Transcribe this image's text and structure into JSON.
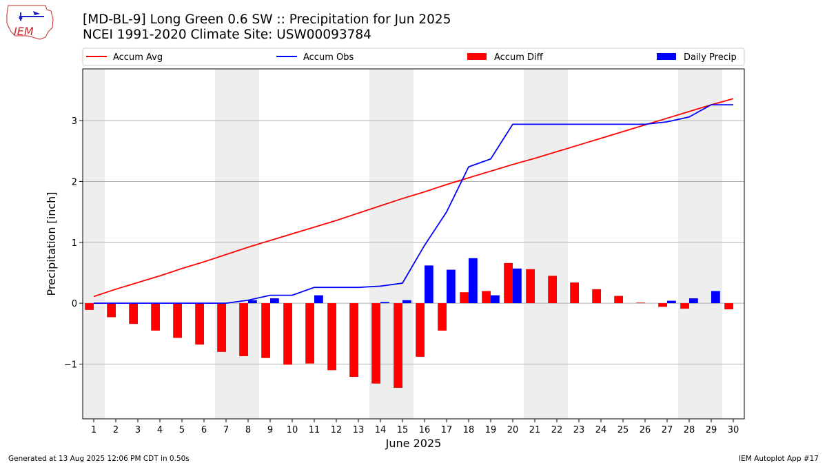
{
  "header": {
    "title_line1": "[MD-BL-9] Long Green 0.6 SW :: Precipitation for Jun 2025",
    "title_line2": "NCEI 1991-2020 Climate Site: USW00093784",
    "logo_text": "IEM"
  },
  "footer": {
    "generated": "Generated at 13 Aug 2025 12:06 PM CDT in 0.50s",
    "app": "IEM Autoplot App #17"
  },
  "chart_data": {
    "type": "bar",
    "xlabel": "June 2025",
    "ylabel": "Precipitation [inch]",
    "x": [
      1,
      2,
      3,
      4,
      5,
      6,
      7,
      8,
      9,
      10,
      11,
      12,
      13,
      14,
      15,
      16,
      17,
      18,
      19,
      20,
      21,
      22,
      23,
      24,
      25,
      26,
      27,
      28,
      29,
      30
    ],
    "xlim": [
      0.5,
      30.5
    ],
    "ylim": [
      -1.9,
      3.85
    ],
    "yticks": [
      -1,
      0,
      1,
      2,
      3
    ],
    "ytick_labels": [
      "−1",
      "0",
      "1",
      "2",
      "3"
    ],
    "grid": "horizontal",
    "legend_position": "top",
    "weekend_shading": [
      [
        0.5,
        1.5
      ],
      [
        6.5,
        8.5
      ],
      [
        13.5,
        15.5
      ],
      [
        20.5,
        22.5
      ],
      [
        27.5,
        29.5
      ]
    ],
    "shade_color": "#eeeeee",
    "series": [
      {
        "name": "Accum Avg",
        "kind": "line",
        "color": "#ff0000",
        "values": [
          0.11,
          0.23,
          0.34,
          0.45,
          0.57,
          0.68,
          0.8,
          0.92,
          1.03,
          1.14,
          1.25,
          1.36,
          1.48,
          1.6,
          1.72,
          1.83,
          1.95,
          2.06,
          2.17,
          2.28,
          2.38,
          2.49,
          2.6,
          2.71,
          2.82,
          2.93,
          3.04,
          3.15,
          3.26,
          3.36
        ]
      },
      {
        "name": "Accum Obs",
        "kind": "line",
        "color": "#0000ff",
        "values": [
          0.0,
          0.0,
          0.0,
          0.0,
          0.0,
          0.0,
          0.0,
          0.05,
          0.13,
          0.13,
          0.26,
          0.26,
          0.26,
          0.28,
          0.33,
          0.95,
          1.5,
          2.24,
          2.37,
          2.94,
          2.94,
          2.94,
          2.94,
          2.94,
          2.94,
          2.94,
          2.98,
          3.06,
          3.26,
          3.26
        ]
      },
      {
        "name": "Accum Diff",
        "kind": "bar",
        "color": "#ff0000",
        "values": [
          -0.11,
          -0.23,
          -0.34,
          -0.45,
          -0.57,
          -0.68,
          -0.8,
          -0.87,
          -0.9,
          -1.01,
          -0.99,
          -1.1,
          -1.21,
          -1.32,
          -1.39,
          -0.88,
          -0.45,
          0.18,
          0.2,
          0.66,
          0.56,
          0.45,
          0.34,
          0.23,
          0.12,
          0.01,
          -0.06,
          -0.09,
          0.0,
          -0.1
        ]
      },
      {
        "name": "Daily Precip",
        "kind": "bar",
        "color": "#0000ff",
        "values": [
          0,
          0,
          0,
          0,
          0,
          0,
          0,
          0.05,
          0.08,
          0,
          0.13,
          0,
          0,
          0.02,
          0.05,
          0.62,
          0.55,
          0.74,
          0.13,
          0.57,
          0,
          0,
          0,
          0,
          0,
          0,
          0.04,
          0.08,
          0.2,
          0
        ]
      }
    ]
  }
}
